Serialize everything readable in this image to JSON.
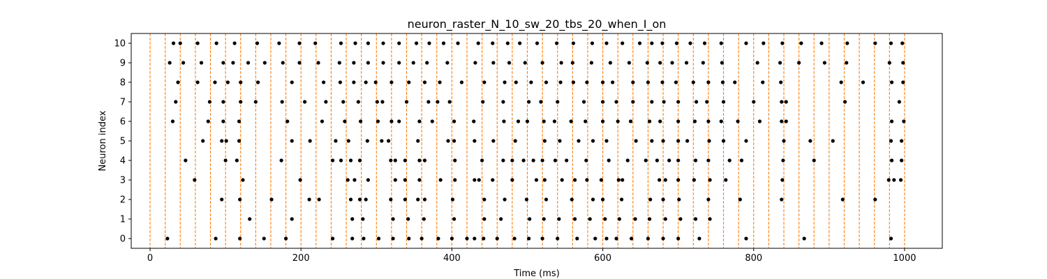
{
  "chart_data": {
    "type": "scatter",
    "title": "neuron_raster_N_10_sw_20_tbs_20_when_I_on",
    "xlabel": "Time (ms)",
    "ylabel": "Neuron index",
    "xlim": [
      -25,
      1050
    ],
    "ylim": [
      -0.5,
      10.5
    ],
    "xticks": [
      0,
      200,
      400,
      600,
      800,
      1000
    ],
    "yticks": [
      0,
      1,
      2,
      3,
      4,
      5,
      6,
      7,
      8,
      9,
      10
    ],
    "grid": false,
    "time_bin_lines": {
      "x": [
        0,
        20,
        40,
        60,
        80,
        100,
        120,
        140,
        160,
        180,
        200,
        220,
        240,
        260,
        280,
        300,
        320,
        340,
        360,
        380,
        400,
        420,
        440,
        460,
        480,
        500,
        520,
        540,
        560,
        580,
        600,
        620,
        640,
        660,
        680,
        700,
        720,
        740,
        760,
        780,
        800,
        820,
        840,
        860,
        880,
        900,
        920,
        940,
        960,
        980,
        1000
      ],
      "color": "#ff7f0e",
      "style": "dashed"
    },
    "marker_color": "#000000",
    "series": [
      {
        "neuron": 0,
        "x": [
          23,
          87,
          119,
          151,
          180,
          242,
          268,
          283,
          303,
          322,
          343,
          360,
          382,
          400,
          420,
          430,
          442,
          460,
          483,
          502,
          520,
          540,
          566,
          590,
          605,
          618,
          638,
          660,
          680,
          700,
          728,
          790,
          867,
          982
        ]
      },
      {
        "neuron": 1,
        "x": [
          132,
          188,
          268,
          282,
          322,
          342,
          363,
          403,
          443,
          465,
          503,
          522,
          542,
          563,
          583,
          603,
          622,
          643,
          662,
          683,
          703,
          723,
          742
        ]
      },
      {
        "neuron": 2,
        "x": [
          95,
          119,
          161,
          211,
          224,
          266,
          278,
          286,
          319,
          338,
          355,
          364,
          401,
          443,
          470,
          499,
          525,
          559,
          587,
          600,
          625,
          663,
          680,
          701,
          740,
          782,
          837,
          918,
          961
        ]
      },
      {
        "neuron": 3,
        "x": [
          59,
          123,
          199,
          262,
          271,
          289,
          325,
          338,
          357,
          385,
          404,
          430,
          436,
          454,
          480,
          512,
          523,
          546,
          563,
          579,
          598,
          621,
          626,
          675,
          683,
          700,
          721,
          742,
          763,
          838,
          979,
          986,
          995
        ]
      },
      {
        "neuron": 4,
        "x": [
          47,
          100,
          115,
          174,
          242,
          253,
          266,
          278,
          319,
          325,
          338,
          357,
          364,
          404,
          440,
          468,
          480,
          495,
          508,
          520,
          537,
          552,
          578,
          608,
          633,
          657,
          672,
          688,
          700,
          723,
          740,
          768,
          784,
          839,
          880,
          983,
          996
        ]
      },
      {
        "neuron": 5,
        "x": [
          70,
          95,
          101,
          118,
          188,
          212,
          246,
          263,
          288,
          307,
          316,
          355,
          395,
          403,
          430,
          455,
          484,
          523,
          543,
          568,
          587,
          605,
          644,
          665,
          680,
          700,
          712,
          741,
          760,
          790,
          840,
          875,
          905,
          982,
          996
        ]
      },
      {
        "neuron": 6,
        "x": [
          30,
          77,
          97,
          118,
          182,
          228,
          258,
          279,
          302,
          320,
          330,
          357,
          374,
          403,
          429,
          469,
          488,
          500,
          522,
          536,
          558,
          577,
          600,
          620,
          637,
          662,
          676,
          700,
          722,
          740,
          757,
          779,
          808,
          837,
          843,
          983,
          999
        ]
      },
      {
        "neuron": 7,
        "x": [
          34,
          79,
          97,
          120,
          140,
          175,
          205,
          233,
          256,
          276,
          301,
          308,
          340,
          369,
          381,
          397,
          441,
          468,
          502,
          518,
          540,
          575,
          600,
          618,
          640,
          665,
          681,
          700,
          724,
          738,
          760,
          800,
          837,
          843,
          921,
          993
        ]
      },
      {
        "neuron": 8,
        "x": [
          37,
          63,
          86,
          103,
          120,
          143,
          188,
          230,
          252,
          270,
          286,
          299,
          320,
          343,
          364,
          384,
          413,
          443,
          470,
          485,
          505,
          525,
          544,
          561,
          579,
          600,
          613,
          640,
          660,
          679,
          697,
          720,
          740,
          759,
          775,
          812,
          836,
          916,
          945,
          983,
          998
        ]
      },
      {
        "neuron": 9,
        "x": [
          26,
          44,
          68,
          97,
          110,
          130,
          152,
          176,
          198,
          223,
          251,
          270,
          289,
          309,
          330,
          349,
          367,
          394,
          431,
          455,
          476,
          497,
          520,
          545,
          560,
          585,
          610,
          635,
          659,
          676,
          692,
          711,
          733,
          758,
          805,
          835,
          860,
          894,
          923,
          980,
          998
        ]
      },
      {
        "neuron": 10,
        "x": [
          31,
          40,
          63,
          88,
          112,
          142,
          171,
          198,
          219,
          253,
          272,
          289,
          309,
          330,
          353,
          370,
          389,
          408,
          435,
          454,
          474,
          490,
          513,
          539,
          561,
          586,
          605,
          626,
          649,
          665,
          679,
          698,
          716,
          735,
          757,
          790,
          813,
          838,
          863,
          890,
          924,
          961,
          982,
          997
        ]
      }
    ]
  }
}
